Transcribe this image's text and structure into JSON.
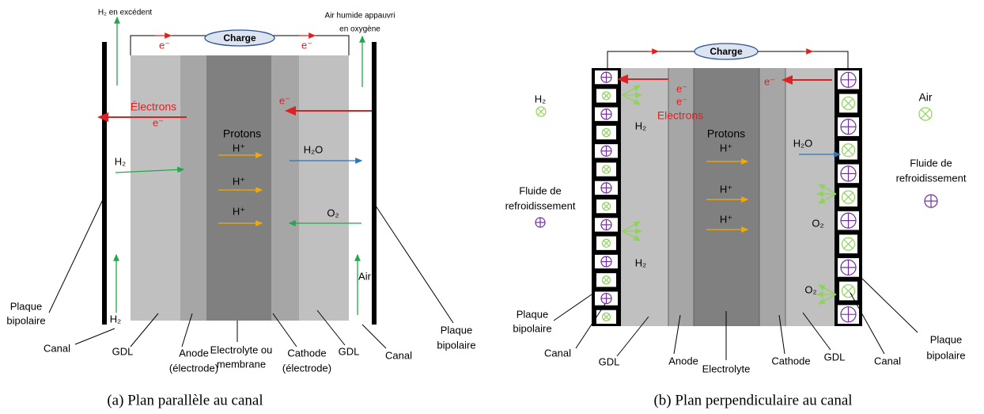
{
  "panel_a": {
    "caption": "(a) Plan parallèle au canal",
    "charge": "Charge",
    "h2_excess": "H₂ en excédent",
    "air_out": [
      "Air humide appauvri",
      "en oxygène"
    ],
    "electron_wire": [
      "e⁻",
      "e⁻"
    ],
    "electrons": [
      "Électrons",
      "e⁻"
    ],
    "electron_cathode": "e⁻",
    "protons": "Protons",
    "proton_ions": [
      "H⁺",
      "H⁺",
      "H⁺"
    ],
    "water": "H₂O",
    "hydrogen": "H₂",
    "oxygen": "O₂",
    "hydrogen_in": "H₂",
    "air_in": "Air",
    "layers": {
      "plate_left": [
        "Plaque",
        "bipolaire"
      ],
      "channel_left": "Canal",
      "gdl_left": "GDL",
      "anode": [
        "Anode",
        "(électrode)"
      ],
      "membrane": [
        "Electrolyte ou",
        "membrane"
      ],
      "cathode": [
        "Cathode",
        "(électrode)"
      ],
      "gdl_right": "GDL",
      "channel_right": "Canal",
      "plate_right": [
        "Plaque",
        "bipolaire"
      ]
    }
  },
  "panel_b": {
    "caption": "(b) Plan perpendiculaire au canal",
    "charge": "Charge",
    "electrons": [
      "e⁻",
      "e⁻",
      "Electrons"
    ],
    "electron_cathode": "e⁻",
    "hydrogen_legend": "H₂",
    "air_legend": "Air",
    "coolant_left": [
      "Fluide de",
      "refroidissement"
    ],
    "coolant_right": [
      "Fluide de",
      "refroidissement"
    ],
    "protons": "Protons",
    "proton_ions": [
      "H⁺",
      "H⁺",
      "H⁺"
    ],
    "water": "H₂O",
    "hydrogen": [
      "H₂",
      "H₂"
    ],
    "oxygen": [
      "O₂",
      "O₂"
    ],
    "layers": {
      "plate_left": [
        "Plaque",
        "bipolaire"
      ],
      "channel_left": "Canal",
      "gdl_left": "GDL",
      "anode": "Anode",
      "electrolyte": "Electrolyte",
      "cathode": "Cathode",
      "gdl_right": "GDL",
      "channel_right": "Canal",
      "plate_right": [
        "Plaque",
        "bipolaire"
      ]
    }
  }
}
